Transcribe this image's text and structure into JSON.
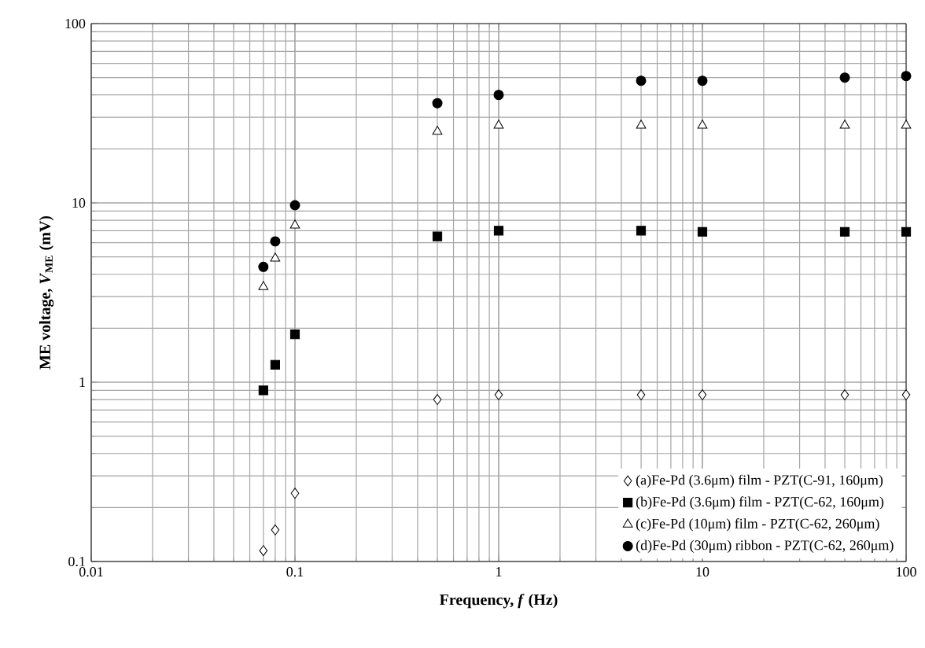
{
  "chart_data": {
    "type": "scatter",
    "xlabel": "**Frequency, *f* (Hz)**",
    "ylabel": "**ME voltage, *V*$_{ME}$ (mV)**",
    "log": "xy",
    "grid": true,
    "legend": "bottom right",
    "xlim": [
      0.01,
      100
    ],
    "xticks": [
      0.01,
      0.1,
      1,
      10,
      100
    ],
    "ylim": [
      0.1,
      100
    ],
    "yticks": [
      0.1,
      1,
      10,
      100
    ],
    "series": [
      {
        "name": "(a)Fe-Pd (3.6μm) film - PZT(C-91, 160μm)",
        "color": "#000000",
        "marker": "diamond",
        "x": [
          0.07,
          0.08,
          0.1,
          0.5,
          1,
          5,
          10,
          50,
          100
        ],
        "values": [
          0.115,
          0.15,
          0.24,
          0.8,
          0.85,
          0.85,
          0.85,
          0.85,
          0.85
        ]
      },
      {
        "name": "(b)Fe-Pd (3.6μm) film - PZT(C-62, 160μm)",
        "color": "#000000",
        "marker": "square",
        "x": [
          0.07,
          0.08,
          0.1,
          0.5,
          1,
          5,
          10,
          50,
          100
        ],
        "values": [
          0.9,
          1.25,
          1.85,
          6.5,
          7,
          7,
          6.9,
          6.9,
          6.9
        ]
      },
      {
        "name": "(c)Fe-Pd (10μm) film - PZT(C-62, 260μm)",
        "color": "#000000",
        "marker": "triangle",
        "x": [
          0.07,
          0.08,
          0.1,
          0.5,
          1,
          5,
          10,
          50,
          100
        ],
        "values": [
          3.4,
          4.9,
          7.5,
          25,
          27,
          27,
          27,
          27,
          27
        ]
      },
      {
        "name": "(d)Fe-Pd (30μm) ribbon - PZT(C-62, 260μm)",
        "color": "#000000",
        "marker": "circle",
        "x": [
          0.07,
          0.08,
          0.1,
          0.5,
          1,
          5,
          10,
          50,
          100
        ],
        "values": [
          4.4,
          6.1,
          9.7,
          36,
          40,
          48,
          48,
          50,
          51
        ]
      }
    ]
  }
}
